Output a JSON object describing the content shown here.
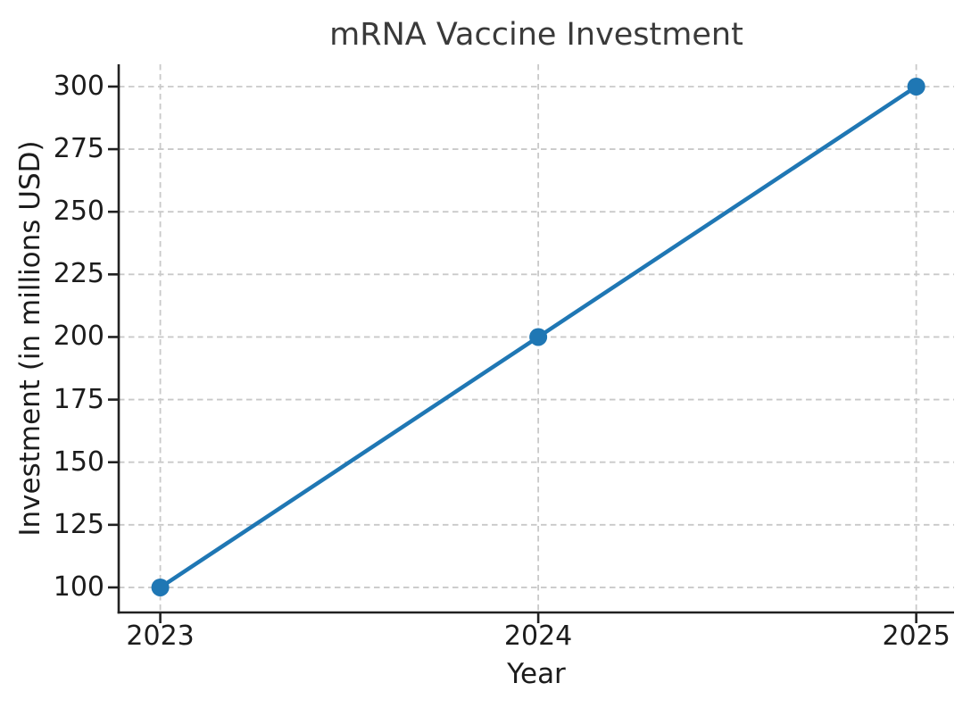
{
  "figure": {
    "background": "#ffffff"
  },
  "chart_data": {
    "type": "line",
    "title": "mRNA Vaccine Investment",
    "xlabel": "Year",
    "ylabel": "Investment (in millions USD)",
    "x": [
      2023,
      2024,
      2025
    ],
    "series": [
      {
        "name": "Investment",
        "values": [
          100,
          200,
          300
        ]
      }
    ],
    "x_ticks": [
      2023,
      2024,
      2025
    ],
    "y_ticks": [
      100,
      125,
      150,
      175,
      200,
      225,
      250,
      275,
      300
    ],
    "xlim": [
      2022.89,
      2025.1
    ],
    "ylim": [
      90,
      308.9
    ],
    "grid": true,
    "grid_style": "dashed",
    "legend": "none",
    "marker": "circle",
    "colors": {
      "line": "#1f77b4",
      "marker": "#1f77b4",
      "grid": "#c9c9c9",
      "spine": "#212121",
      "tick": "#212121",
      "tick_text": "#1c1c1c",
      "title_text": "#3a3a3a"
    }
  }
}
